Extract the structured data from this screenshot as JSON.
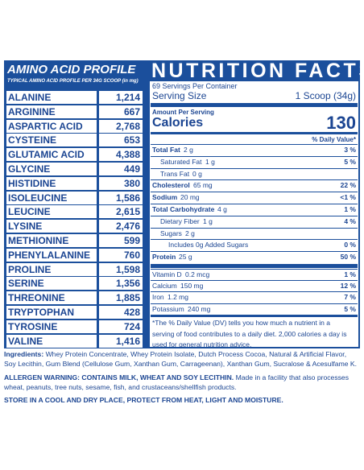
{
  "amino": {
    "title": "AMINO ACID PROFILE",
    "subtitle": "TYPICAL AMINO ACID PROFILE PER 34G SCOOP (in mg)",
    "rows": [
      [
        "ALANINE",
        "1,214"
      ],
      [
        "ARGININE",
        "667"
      ],
      [
        "ASPARTIC ACID",
        "2,768"
      ],
      [
        "CYSTEINE",
        "653"
      ],
      [
        "GLUTAMIC ACID",
        "4,388"
      ],
      [
        "GLYCINE",
        "449"
      ],
      [
        "HISTIDINE",
        "380"
      ],
      [
        "ISOLEUCINE",
        "1,586"
      ],
      [
        "LEUCINE",
        "2,615"
      ],
      [
        "LYSINE",
        "2,476"
      ],
      [
        "METHIONINE",
        "599"
      ],
      [
        "PHENYLALANINE",
        "760"
      ],
      [
        "PROLINE",
        "1,598"
      ],
      [
        "SERINE",
        "1,356"
      ],
      [
        "THREONINE",
        "1,885"
      ],
      [
        "TRYPTOPHAN",
        "428"
      ],
      [
        "TYROSINE",
        "724"
      ],
      [
        "VALINE",
        "1,416"
      ]
    ]
  },
  "nutrition": {
    "title": "NUTRITION FACTS",
    "servings": "69 Servings Per Container",
    "serving_size_label": "Serving Size",
    "serving_size": "1 Scoop (34g)",
    "amount_per_serving": "Amount Per Serving",
    "calories_label": "Calories",
    "calories": "130",
    "dv_header": "% Daily Value*",
    "rows": [
      [
        "Total Fat",
        "2 g",
        "3 %"
      ],
      [
        "Saturated Fat",
        "1 g",
        "5 %"
      ],
      [
        "Trans Fat",
        "0 g",
        ""
      ],
      [
        "Cholesterol",
        "65 mg",
        "22 %"
      ],
      [
        "Sodium",
        "20 mg",
        "<1 %"
      ],
      [
        "Total Carbohydrate",
        "4 g",
        "1 %"
      ],
      [
        "Dietary Fiber",
        "1 g",
        "4 %"
      ],
      [
        "Sugars",
        "2 g",
        ""
      ],
      [
        "Includes 0g Added Sugars",
        "",
        "0 %"
      ],
      [
        "Protein",
        "25 g",
        "50 %"
      ]
    ],
    "vitamins": [
      [
        "Vitamin D",
        "0.2 mcg",
        "1 %"
      ],
      [
        "Calcium",
        "150 mg",
        "12 %"
      ],
      [
        "Iron",
        "1.2 mg",
        "7 %"
      ],
      [
        "Potassium",
        "240 mg",
        "5 %"
      ]
    ],
    "footnote": "*The % Daily Value (DV) tells you how much a nutrient in a serving of food contributes to a daily diet. 2,000 calories a day is used for general nutrition advice."
  },
  "ingredients": {
    "label": "Ingredients:",
    "text": "Whey Protein Concentrate, Whey Protein Isolate, Dutch Process Cocoa, Natural & Artificial Flavor, Soy Lecithin, Gum Blend (Cellulose Gum, Xanthan Gum, Carrageenan), Xanthan Gum, Sucralose & Acesulfame K."
  },
  "allergen": {
    "label": "ALLERGEN WARNING: CONTAINS MILK, WHEAT AND SOY LECITHIN.",
    "text": "Made in a facility that also processes wheat, peanuts, tree nuts, sesame, fish, and crustaceans/shellfish products."
  },
  "storage": "STORE IN A COOL AND DRY PLACE, PROTECT FROM HEAT, LIGHT AND MOISTURE."
}
